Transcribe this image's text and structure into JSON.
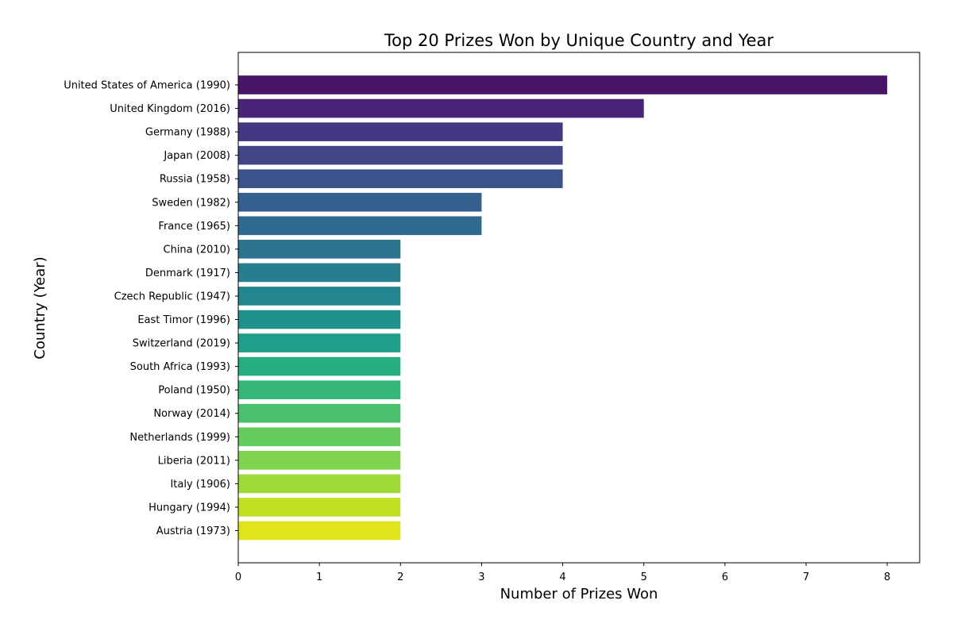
{
  "chart_data": {
    "type": "bar",
    "orientation": "horizontal",
    "title": "Top 20 Prizes Won by Unique Country and Year",
    "xlabel": "Number of Prizes Won",
    "ylabel": "Country (Year)",
    "xlim": [
      0,
      8.4
    ],
    "xticks": [
      0,
      1,
      2,
      3,
      4,
      5,
      6,
      7,
      8
    ],
    "grid": false,
    "categories": [
      "United States of America (1990)",
      "United Kingdom (2016)",
      "Germany (1988)",
      "Japan (2008)",
      "Russia (1958)",
      "Sweden (1982)",
      "France (1965)",
      "China (2010)",
      "Denmark (1917)",
      "Czech Republic (1947)",
      "East Timor (1996)",
      "Switzerland (2019)",
      "South Africa (1993)",
      "Poland (1950)",
      "Norway (2014)",
      "Netherlands (1999)",
      "Liberia (2011)",
      "Italy (1906)",
      "Hungary (1994)",
      "Austria (1973)"
    ],
    "values": [
      8,
      5,
      4,
      4,
      4,
      3,
      3,
      2,
      2,
      2,
      2,
      2,
      2,
      2,
      2,
      2,
      2,
      2,
      2,
      2
    ],
    "colors": [
      "#481467",
      "#482576",
      "#453781",
      "#404688",
      "#3b528b",
      "#355f8d",
      "#306a8e",
      "#2c738e",
      "#287d8e",
      "#25858e",
      "#21918c",
      "#1f9e89",
      "#26ad81",
      "#35b779",
      "#4ac16d",
      "#65cb5e",
      "#7fd34e",
      "#a0da39",
      "#c2df23",
      "#e1e41d"
    ]
  }
}
